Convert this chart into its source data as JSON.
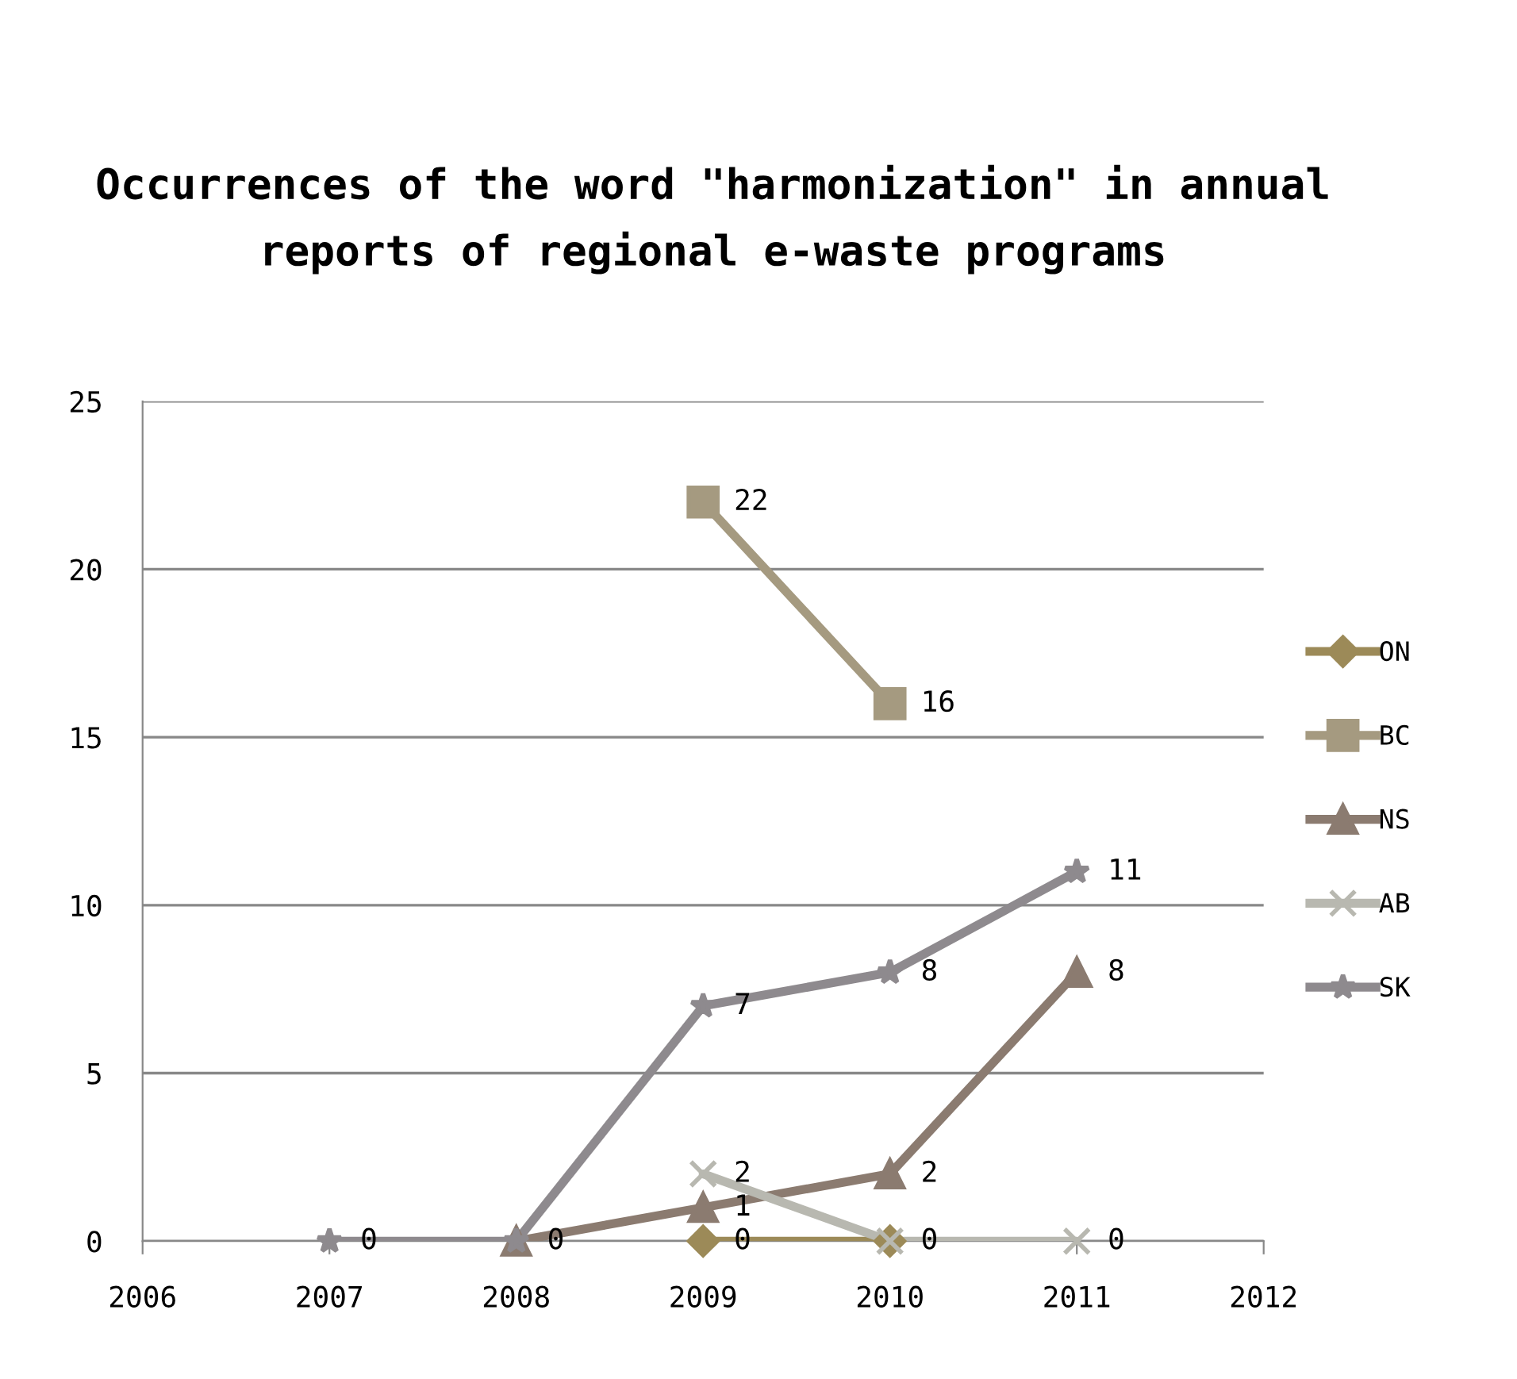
{
  "chart_data": {
    "type": "line",
    "title": "Occurrences of the word \"harmonization\" in annual reports of regional e-waste programs",
    "x": [
      2007,
      2008,
      2009,
      2010,
      2011
    ],
    "series": [
      {
        "name": "ON",
        "color": "#9c8a58",
        "marker": "diamond",
        "values": [
          null,
          null,
          0,
          0,
          null
        ],
        "value_labels": [
          null,
          null,
          "0",
          "0",
          null
        ]
      },
      {
        "name": "BC",
        "color": "#a59a80",
        "marker": "square",
        "values": [
          null,
          null,
          22,
          16,
          null
        ],
        "value_labels": [
          null,
          null,
          "22",
          "16",
          null
        ]
      },
      {
        "name": "NS",
        "color": "#8b7b70",
        "marker": "triangle",
        "values": [
          null,
          0,
          1,
          2,
          8
        ],
        "value_labels": [
          null,
          null,
          "1",
          "2",
          "8"
        ]
      },
      {
        "name": "AB",
        "color": "#b8b8b0",
        "marker": "cross",
        "values": [
          null,
          null,
          2,
          0,
          0
        ],
        "value_labels": [
          null,
          null,
          "2",
          null,
          "0"
        ]
      },
      {
        "name": "SK",
        "color": "#8e8a8e",
        "marker": "star",
        "values": [
          0,
          0,
          7,
          8,
          11
        ],
        "value_labels": [
          "0",
          "0",
          "7",
          "8",
          "11"
        ]
      }
    ],
    "xlim": [
      2006,
      2012
    ],
    "xticks": [
      2006,
      2007,
      2008,
      2009,
      2010,
      2011,
      2012
    ],
    "ylim": [
      0,
      25
    ],
    "yticks": [
      0,
      5,
      10,
      15,
      20,
      25
    ],
    "grid": "y",
    "legend": "right",
    "line_style": "solid"
  }
}
